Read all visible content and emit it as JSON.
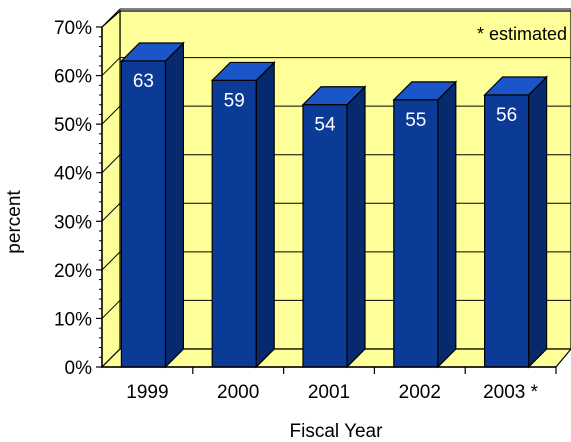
{
  "chart_data": {
    "type": "bar",
    "style": "3d-column",
    "categories": [
      "1999",
      "2000",
      "2001",
      "2002",
      "2003 *"
    ],
    "values": [
      63,
      59,
      54,
      55,
      56
    ],
    "data_labels": [
      "63",
      "59",
      "54",
      "55",
      "56"
    ],
    "title": "",
    "xlabel": "Fiscal Year",
    "ylabel": "percent",
    "ylim": [
      0,
      70
    ],
    "y_ticks": [
      0,
      10,
      20,
      30,
      40,
      50,
      60,
      70
    ],
    "y_tick_labels": [
      "0%",
      "10%",
      "20%",
      "30%",
      "40%",
      "50%",
      "60%",
      "70%"
    ],
    "annotation": "* estimated",
    "grid": true,
    "legend": "none",
    "colors": {
      "bar_front": "#0b3b97",
      "bar_top": "#1a56c7",
      "bar_side": "#072a6e",
      "wall": "#ffff99",
      "floor": "#ffff99",
      "data_label": "#ffffff"
    }
  }
}
